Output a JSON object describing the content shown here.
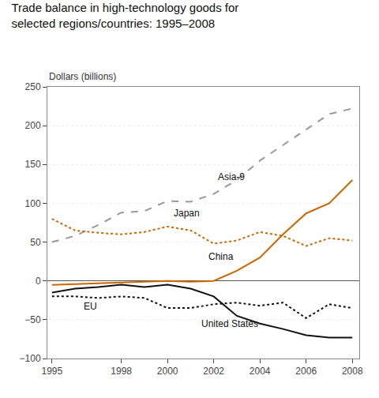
{
  "chart_data": {
    "type": "line",
    "title": [
      "Trade balance in high-technology goods for",
      "selected regions/countries: 1995–2008"
    ],
    "y_label": "Dollars (billions)",
    "x": [
      1995,
      1996,
      1997,
      1998,
      1999,
      2000,
      2001,
      2002,
      2003,
      2004,
      2005,
      2006,
      2007,
      2008
    ],
    "series": [
      {
        "name": "Asia-9",
        "color": "#999999",
        "line_style": "dashed",
        "values": [
          50,
          58,
          72,
          88,
          90,
          103,
          102,
          112,
          130,
          155,
          175,
          195,
          215,
          222
        ]
      },
      {
        "name": "Japan",
        "color": "#cc6600",
        "line_style": "dotted",
        "values": [
          80,
          65,
          62,
          60,
          63,
          70,
          65,
          48,
          52,
          63,
          58,
          45,
          55,
          52
        ]
      },
      {
        "name": "China",
        "color": "#cc6600",
        "line_style": "solid",
        "values": [
          -5,
          -4,
          -3,
          -2,
          -1,
          0,
          -1,
          0,
          13,
          30,
          60,
          87,
          100,
          130
        ]
      },
      {
        "name": "EU",
        "color": "#111111",
        "line_style": "dotted",
        "values": [
          -20,
          -20,
          -22,
          -20,
          -22,
          -35,
          -35,
          -30,
          -28,
          -32,
          -28,
          -48,
          -30,
          -35
        ]
      },
      {
        "name": "United States",
        "color": "#111111",
        "line_style": "solid",
        "values": [
          -15,
          -10,
          -8,
          -5,
          -8,
          -5,
          -10,
          -20,
          -45,
          -55,
          -62,
          -70,
          -73,
          -73
        ]
      }
    ],
    "annotations": [
      {
        "text": "Asia-9",
        "x": 2002.1,
        "y": 125
      },
      {
        "text": "Japan",
        "x": 2000.2,
        "y": 78
      },
      {
        "text": "China",
        "x": 2001.7,
        "y": 22
      },
      {
        "text": "EU",
        "x": 1996.3,
        "y": -42
      },
      {
        "text": "United States",
        "x": 2001.4,
        "y": -64
      }
    ],
    "xlim": [
      1994.8,
      2008.3
    ],
    "xticks": [
      1995,
      1998,
      2000,
      2002,
      2004,
      2006,
      2008
    ],
    "ylim": [
      -100,
      250
    ],
    "yticks": [
      {
        "value": -100,
        "label": "−100"
      },
      {
        "value": -50,
        "label": "−50"
      },
      0,
      50,
      100,
      150,
      200,
      250
    ],
    "grid": "y"
  }
}
